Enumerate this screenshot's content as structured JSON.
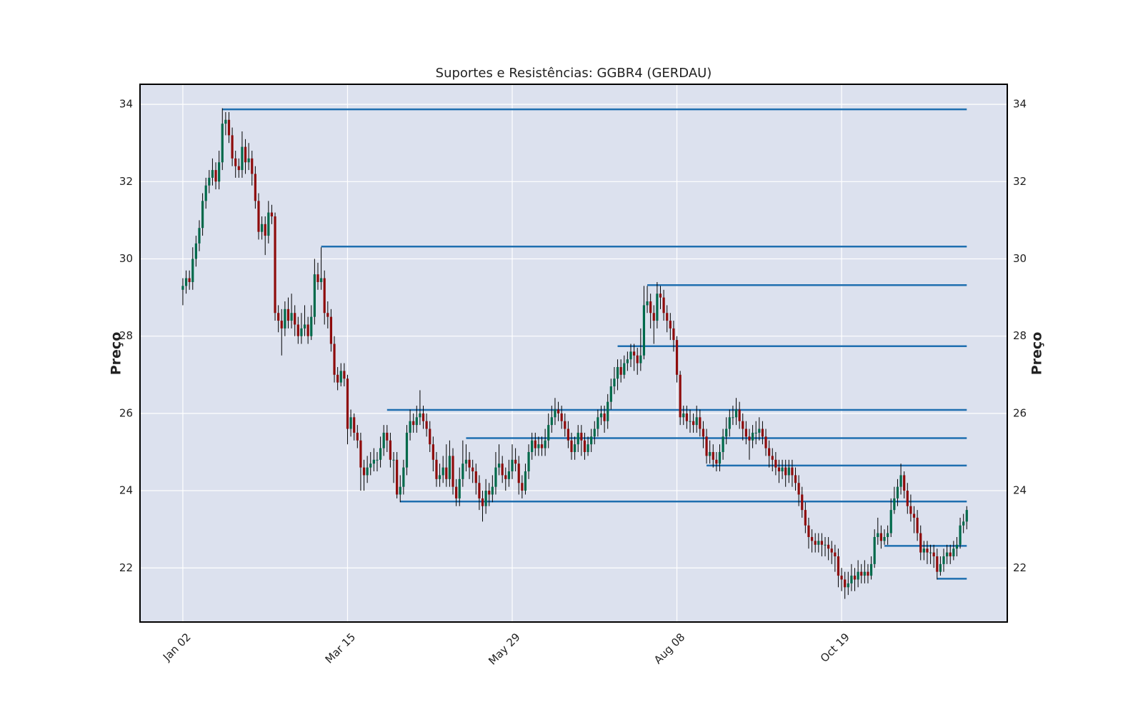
{
  "chart_data": {
    "type": "candlestick",
    "title": "Suportes e Resistências: GGBR4 (GERDAU)",
    "ylabel": "Preço",
    "xlim": [
      -13,
      250.3
    ],
    "xticks": [
      {
        "value": 0,
        "label": "Jan 02"
      },
      {
        "value": 50,
        "label": "Mar 15"
      },
      {
        "value": 100,
        "label": "May 29"
      },
      {
        "value": 150,
        "label": "Aug 08"
      },
      {
        "value": 200,
        "label": "Oct 19"
      }
    ],
    "ylim": [
      20.6,
      34.52
    ],
    "yticks": [
      22,
      24,
      26,
      28,
      30,
      32,
      34
    ],
    "grid": true,
    "up_color": "#00694a",
    "down_color": "#8e0b0b",
    "wick_color": "#000000",
    "line_color": "#1f6fb0",
    "open": [
      29.2,
      29.3,
      29.5,
      29.4,
      30.0,
      30.4,
      30.8,
      31.5,
      31.9,
      32.1,
      32.3,
      32.0,
      32.5,
      33.5,
      33.6,
      33.2,
      32.6,
      32.4,
      32.3,
      32.9,
      32.5,
      32.6,
      32.2,
      31.5,
      30.7,
      30.9,
      30.6,
      31.2,
      31.1,
      28.6,
      28.4,
      28.2,
      28.7,
      28.4,
      28.6,
      28.3,
      28.0,
      28.2,
      28.3,
      28.0,
      28.5,
      29.6,
      29.4,
      29.5,
      28.6,
      28.5,
      27.8,
      27.0,
      26.8,
      27.1,
      26.9,
      25.6,
      25.9,
      25.5,
      25.3,
      24.6,
      24.4,
      24.6,
      24.7,
      24.8,
      24.8,
      25.1,
      25.5,
      25.3,
      24.8,
      24.8,
      23.9,
      24.1,
      24.6,
      25.5,
      25.8,
      25.7,
      25.9,
      26.0,
      25.8,
      25.6,
      25.2,
      24.8,
      24.3,
      24.4,
      24.6,
      24.3,
      24.9,
      24.1,
      23.8,
      24.3,
      24.7,
      24.8,
      24.6,
      24.5,
      24.2,
      23.8,
      23.6,
      24.0,
      23.9,
      24.1,
      24.6,
      24.7,
      24.4,
      24.3,
      24.5,
      24.8,
      24.7,
      24.2,
      24.0,
      24.5,
      25.0,
      25.3,
      25.1,
      25.2,
      25.1,
      25.3,
      25.7,
      25.9,
      26.1,
      26.0,
      25.8,
      25.6,
      25.3,
      25.0,
      25.2,
      25.5,
      25.3,
      25.0,
      25.2,
      25.4,
      25.6,
      25.9,
      26.0,
      25.8,
      26.3,
      26.7,
      26.9,
      27.2,
      27.0,
      27.3,
      27.4,
      27.6,
      27.5,
      27.3,
      27.5,
      28.8,
      28.9,
      28.6,
      28.4,
      29.1,
      29.0,
      28.6,
      28.4,
      28.2,
      27.9,
      27.0,
      25.9,
      26.0,
      25.8,
      25.8,
      25.7,
      25.9,
      25.6,
      25.4,
      24.9,
      25.0,
      24.8,
      24.7,
      25.0,
      25.4,
      25.6,
      25.9,
      25.9,
      26.1,
      25.8,
      25.6,
      25.4,
      25.3,
      25.5,
      25.5,
      25.6,
      25.4,
      25.1,
      24.9,
      24.8,
      24.6,
      24.5,
      24.6,
      24.4,
      24.6,
      24.4,
      24.2,
      23.9,
      23.5,
      23.1,
      22.8,
      22.7,
      22.6,
      22.7,
      22.6,
      22.6,
      22.5,
      22.4,
      22.3,
      21.8,
      21.7,
      21.5,
      21.6,
      21.8,
      21.7,
      21.9,
      21.8,
      21.9,
      21.8,
      22.1,
      22.8,
      22.9,
      22.7,
      22.8,
      22.9,
      23.5,
      23.8,
      24.1,
      24.4,
      24.0,
      23.6,
      23.4,
      23.3,
      22.9,
      22.4,
      22.5,
      22.4,
      22.4,
      22.3,
      21.9,
      22.1,
      22.3,
      22.4,
      22.3,
      22.5,
      22.6,
      23.1,
      23.2
    ],
    "high": [
      29.5,
      29.7,
      29.7,
      30.3,
      30.6,
      31.0,
      31.7,
      32.1,
      32.3,
      32.6,
      32.5,
      32.8,
      33.9,
      33.8,
      33.8,
      33.4,
      32.8,
      32.6,
      33.3,
      33.1,
      33.0,
      32.8,
      32.4,
      31.7,
      31.1,
      31.1,
      31.5,
      31.4,
      31.2,
      28.8,
      28.7,
      28.9,
      29.0,
      29.1,
      28.8,
      28.5,
      28.6,
      28.8,
      28.5,
      28.8,
      30.0,
      29.9,
      30.3,
      29.7,
      28.9,
      28.7,
      28.0,
      27.2,
      27.3,
      27.3,
      27.0,
      26.1,
      26.0,
      25.7,
      25.5,
      24.8,
      24.9,
      25.0,
      25.1,
      25.0,
      25.4,
      25.7,
      25.7,
      25.5,
      25.0,
      25.0,
      24.4,
      24.8,
      25.7,
      26.1,
      26.0,
      26.2,
      26.6,
      26.2,
      26.0,
      25.8,
      25.4,
      25.0,
      24.7,
      24.9,
      25.2,
      25.3,
      25.1,
      24.3,
      24.6,
      25.3,
      25.2,
      25.0,
      24.8,
      24.7,
      24.4,
      24.0,
      24.3,
      24.2,
      24.4,
      25.0,
      25.2,
      24.9,
      24.6,
      24.8,
      25.2,
      25.1,
      24.9,
      24.4,
      24.7,
      25.2,
      25.5,
      25.5,
      25.4,
      25.4,
      25.6,
      26.0,
      26.2,
      26.4,
      26.3,
      26.2,
      26.0,
      25.8,
      25.5,
      25.4,
      25.7,
      25.7,
      25.5,
      25.4,
      25.6,
      25.8,
      26.1,
      26.2,
      26.2,
      26.5,
      26.9,
      27.2,
      27.4,
      27.4,
      27.5,
      27.6,
      27.8,
      27.8,
      27.7,
      28.2,
      29.3,
      29.3,
      29.1,
      28.8,
      29.4,
      29.3,
      29.2,
      28.8,
      28.6,
      28.4,
      28.0,
      27.1,
      26.2,
      26.2,
      26.1,
      26.0,
      26.2,
      26.1,
      25.8,
      25.6,
      25.3,
      25.2,
      25.0,
      25.2,
      25.6,
      25.9,
      26.1,
      26.2,
      26.4,
      26.3,
      26.0,
      25.8,
      25.6,
      25.7,
      25.8,
      25.9,
      25.8,
      25.6,
      25.3,
      25.1,
      25.0,
      24.8,
      24.8,
      24.8,
      24.8,
      24.8,
      24.6,
      24.4,
      24.1,
      23.7,
      23.3,
      23.0,
      22.9,
      22.9,
      22.9,
      22.8,
      22.8,
      22.7,
      22.6,
      22.5,
      22.0,
      21.9,
      21.9,
      22.1,
      22.0,
      22.2,
      22.1,
      22.2,
      22.1,
      22.3,
      23.0,
      23.3,
      23.1,
      23.0,
      23.1,
      23.8,
      24.1,
      24.3,
      24.7,
      24.5,
      24.2,
      23.9,
      23.6,
      23.5,
      23.1,
      22.7,
      22.7,
      22.6,
      22.6,
      22.5,
      22.3,
      22.5,
      22.6,
      22.6,
      22.7,
      22.8,
      23.3,
      23.4,
      23.6
    ],
    "low": [
      28.8,
      29.1,
      29.2,
      29.2,
      29.8,
      30.2,
      30.6,
      31.3,
      31.7,
      31.9,
      31.8,
      31.8,
      32.3,
      33.2,
      33.0,
      32.4,
      32.1,
      32.1,
      32.1,
      32.2,
      32.3,
      31.9,
      31.3,
      30.5,
      30.5,
      30.1,
      30.4,
      30.9,
      28.4,
      28.1,
      27.5,
      28.0,
      28.2,
      28.2,
      28.0,
      27.8,
      27.8,
      28.0,
      27.8,
      27.9,
      28.3,
      29.2,
      29.2,
      28.3,
      28.2,
      27.6,
      26.8,
      26.6,
      26.7,
      26.7,
      25.2,
      25.4,
      25.3,
      25.1,
      24.0,
      24.0,
      24.2,
      24.4,
      24.5,
      24.5,
      24.6,
      24.9,
      25.0,
      24.6,
      24.2,
      23.8,
      23.7,
      23.9,
      24.4,
      25.3,
      25.5,
      25.5,
      25.7,
      25.6,
      25.4,
      25.0,
      24.5,
      24.1,
      24.1,
      24.2,
      24.1,
      24.1,
      23.9,
      23.6,
      23.6,
      24.1,
      24.5,
      24.3,
      24.2,
      23.9,
      23.5,
      23.2,
      23.4,
      23.6,
      23.7,
      23.9,
      24.4,
      24.2,
      24.0,
      24.1,
      24.3,
      24.5,
      23.9,
      23.8,
      23.9,
      24.3,
      24.8,
      24.9,
      24.9,
      24.9,
      24.9,
      25.1,
      25.5,
      25.7,
      25.8,
      25.6,
      25.4,
      25.1,
      24.8,
      24.8,
      25.0,
      24.9,
      24.8,
      24.9,
      25.0,
      25.2,
      25.4,
      25.7,
      25.5,
      25.6,
      26.1,
      26.5,
      26.6,
      26.8,
      26.9,
      27.1,
      27.2,
      27.1,
      27.0,
      27.1,
      27.4,
      28.6,
      28.2,
      27.8,
      28.2,
      28.7,
      28.4,
      28.1,
      27.9,
      27.6,
      26.8,
      25.7,
      25.7,
      25.6,
      25.5,
      25.5,
      25.5,
      25.4,
      25.1,
      24.7,
      24.7,
      24.6,
      24.5,
      24.5,
      24.8,
      25.2,
      25.4,
      25.7,
      25.7,
      25.6,
      25.3,
      25.2,
      24.8,
      25.1,
      25.2,
      25.3,
      25.2,
      24.9,
      24.6,
      24.5,
      24.4,
      24.2,
      24.3,
      24.1,
      24.2,
      24.1,
      24.0,
      23.6,
      23.3,
      22.9,
      22.5,
      22.4,
      22.4,
      22.4,
      22.3,
      22.3,
      22.2,
      22.1,
      21.9,
      21.5,
      21.4,
      21.2,
      21.3,
      21.4,
      21.4,
      21.5,
      21.6,
      21.6,
      21.6,
      21.7,
      22.0,
      22.6,
      22.5,
      22.6,
      22.6,
      22.8,
      23.4,
      23.6,
      23.9,
      23.8,
      23.4,
      23.2,
      22.9,
      22.7,
      22.2,
      22.2,
      22.1,
      22.1,
      22.0,
      21.7,
      21.8,
      21.9,
      22.1,
      22.1,
      22.2,
      22.3,
      22.5,
      22.9,
      23.0
    ],
    "close": [
      29.3,
      29.5,
      29.4,
      30.0,
      30.4,
      30.8,
      31.5,
      31.9,
      32.1,
      32.3,
      32.0,
      32.5,
      33.5,
      33.6,
      33.2,
      32.6,
      32.4,
      32.3,
      32.9,
      32.5,
      32.6,
      32.2,
      31.5,
      30.7,
      30.9,
      30.6,
      31.2,
      31.1,
      28.6,
      28.4,
      28.2,
      28.7,
      28.4,
      28.6,
      28.3,
      28.0,
      28.2,
      28.3,
      28.0,
      28.5,
      29.6,
      29.4,
      29.5,
      28.6,
      28.5,
      27.8,
      27.0,
      26.8,
      27.1,
      26.9,
      25.6,
      25.9,
      25.5,
      25.3,
      24.6,
      24.4,
      24.6,
      24.7,
      24.8,
      24.8,
      25.1,
      25.5,
      25.3,
      24.8,
      24.8,
      23.9,
      24.1,
      24.6,
      25.5,
      25.8,
      25.7,
      25.9,
      26.0,
      25.8,
      25.6,
      25.2,
      24.8,
      24.3,
      24.4,
      24.6,
      24.3,
      24.9,
      24.1,
      23.8,
      24.3,
      24.7,
      24.8,
      24.6,
      24.5,
      24.2,
      23.8,
      23.6,
      24.0,
      23.9,
      24.1,
      24.6,
      24.7,
      24.4,
      24.3,
      24.5,
      24.8,
      24.7,
      24.2,
      24.0,
      24.5,
      25.0,
      25.3,
      25.1,
      25.2,
      25.1,
      25.3,
      25.7,
      25.9,
      26.1,
      26.0,
      25.8,
      25.6,
      25.3,
      25.0,
      25.2,
      25.5,
      25.3,
      25.0,
      25.2,
      25.4,
      25.6,
      25.9,
      26.0,
      25.8,
      26.3,
      26.7,
      26.9,
      27.2,
      27.0,
      27.3,
      27.4,
      27.6,
      27.5,
      27.3,
      27.5,
      28.8,
      28.9,
      28.6,
      28.4,
      29.1,
      29.0,
      28.6,
      28.4,
      28.2,
      27.9,
      27.0,
      25.9,
      26.0,
      25.8,
      25.8,
      25.7,
      25.9,
      25.6,
      25.4,
      24.9,
      25.0,
      24.8,
      24.7,
      25.0,
      25.4,
      25.6,
      25.9,
      25.9,
      26.1,
      25.8,
      25.6,
      25.4,
      25.3,
      25.5,
      25.5,
      25.6,
      25.4,
      25.1,
      24.9,
      24.8,
      24.6,
      24.5,
      24.6,
      24.4,
      24.6,
      24.4,
      24.2,
      23.9,
      23.5,
      23.1,
      22.8,
      22.7,
      22.6,
      22.7,
      22.6,
      22.6,
      22.5,
      22.4,
      22.3,
      21.8,
      21.7,
      21.5,
      21.6,
      21.8,
      21.7,
      21.9,
      21.8,
      21.9,
      21.8,
      22.1,
      22.8,
      22.9,
      22.7,
      22.8,
      22.9,
      23.5,
      23.8,
      24.1,
      24.4,
      24.0,
      23.6,
      23.4,
      23.3,
      22.9,
      22.4,
      22.5,
      22.4,
      22.4,
      22.3,
      21.9,
      22.1,
      22.3,
      22.4,
      22.3,
      22.5,
      22.6,
      23.1,
      23.2,
      23.5
    ],
    "lines": [
      {
        "level": 33.87,
        "start": 12
      },
      {
        "level": 30.32,
        "start": 42
      },
      {
        "level": 29.32,
        "start": 141
      },
      {
        "level": 27.74,
        "start": 132
      },
      {
        "level": 26.09,
        "start": 62
      },
      {
        "level": 25.36,
        "start": 86
      },
      {
        "level": 24.65,
        "start": 159
      },
      {
        "level": 23.72,
        "start": 66
      },
      {
        "level": 22.57,
        "start": 213
      },
      {
        "level": 21.72,
        "start": 229
      }
    ]
  }
}
